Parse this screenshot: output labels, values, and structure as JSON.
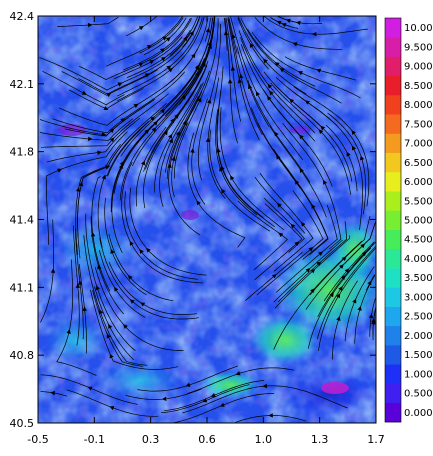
{
  "chart_data": {
    "type": "heatmap",
    "title": "",
    "xlabel": "",
    "ylabel": "",
    "x_ticks": [
      "-0.5",
      "-0.1",
      "0.3",
      "0.6",
      "1.0",
      "1.3",
      "1.7"
    ],
    "y_ticks": [
      "42.4",
      "42.1",
      "41.8",
      "41.4",
      "41.1",
      "40.8",
      "40.5"
    ],
    "xlim": [
      -0.5,
      1.7
    ],
    "ylim": [
      40.5,
      42.4
    ],
    "overlay": "streamlines",
    "colorbar": {
      "labels": [
        "0.000",
        "0.500",
        "1.000",
        "1.500",
        "2.000",
        "2.500",
        "3.000",
        "3.500",
        "4.000",
        "4.500",
        "5.000",
        "5.500",
        "6.000",
        "6.500",
        "7.000",
        "7.500",
        "8.000",
        "8.500",
        "9.000",
        "9.500",
        "10.00"
      ],
      "colors": [
        "#5a00d8",
        "#4020f0",
        "#1e2ff8",
        "#1e5ae6",
        "#1e82ea",
        "#1ea6ee",
        "#1ec8e4",
        "#1ee0c4",
        "#2ae896",
        "#46ec5a",
        "#78ee32",
        "#aaee1e",
        "#e8ee1e",
        "#f2c81e",
        "#f49a1e",
        "#f46a1e",
        "#f0401e",
        "#e81e2a",
        "#e01e6a",
        "#d81ea8",
        "#d21ee0"
      ]
    }
  }
}
